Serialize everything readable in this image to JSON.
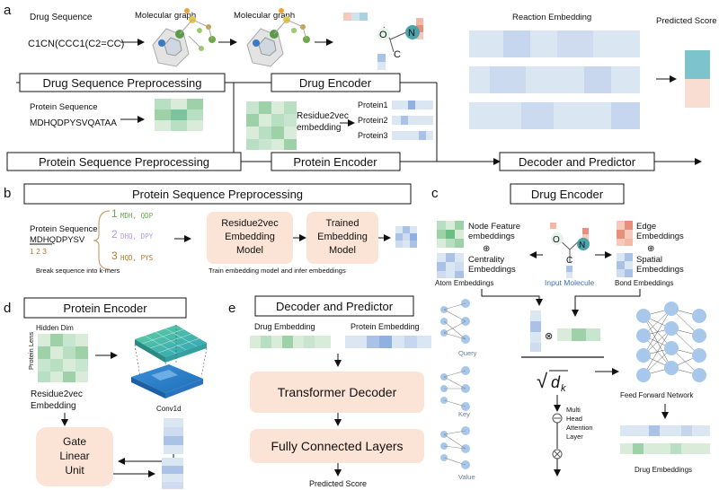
{
  "panels": {
    "a": "a",
    "b": "b",
    "c": "c",
    "d": "d",
    "e": "e"
  },
  "a": {
    "drug_sequence_label": "Drug Sequence",
    "drug_smiles": "C1CN(CCC1(C2=CC)",
    "molecular_graph_1": "Molecular graph",
    "molecular_graph_2": "Molecular graph",
    "atom_o": "O",
    "atom_n": "N",
    "atom_c": "C",
    "reaction_embedding": "Reaction Embedding",
    "predicted_score": "Predicted Score",
    "drug_seq_pre": "Drug Sequence Preprocessing",
    "drug_encoder": "Drug Encoder",
    "protein_sequence_label": "Protein Sequence",
    "protein_seq": "MDHQDPYSVQATAA",
    "residue2vec": "Residue2vec",
    "embedding": "embedding",
    "protein1": "Protein1",
    "protein2": "Protein2",
    "protein3": "Protein3",
    "protein_seq_pre": "Protein Sequence Preprocessing",
    "protein_encoder": "Protein Encoder",
    "decoder_predictor": "Decoder and Predictor"
  },
  "b": {
    "title": "Protein Sequence Preprocessing",
    "protein_sequence": "Protein Sequence",
    "seq": "MDHQDPYSV",
    "idx": "1 2 3",
    "kmer1_num": "1",
    "kmer1": "MDH,  QDP",
    "kmer2_num": "2",
    "kmer2": "DHQ,  DPY",
    "kmer3_num": "3",
    "kmer3": "HQD,  PYS",
    "box1_l1": "Residue2vec",
    "box1_l2": "Embedding",
    "box1_l3": "Model",
    "box2_l1": "Trained",
    "box2_l2": "Embedding",
    "box2_l3": "Model",
    "caption1": "Break sequence into k-mers",
    "caption2": "Train embedding model and infer embeddings"
  },
  "c": {
    "title": "Drug Encoder",
    "node_feature_l1": "Node Feature",
    "node_feature_l2": "embeddings",
    "plus1": "⊕",
    "centrality_l1": "Centrality",
    "centrality_l2": "Embeddings",
    "atom_embeddings": "Atom Embeddings",
    "input_molecule": "Input Molecule",
    "edge_l1": "Edge",
    "edge_l2": "Embeddings",
    "plus2": "⊕",
    "spatial_l1": "Spatial",
    "spatial_l2": "Embeddings",
    "bond_embeddings": "Bond Embeddings",
    "atom_o": "O",
    "atom_n": "N",
    "atom_c": "C",
    "query": "Query",
    "key": "Key",
    "value": "Value",
    "otimes": "⊗",
    "sqrt_dk": "√",
    "dk_d": "d",
    "dk_k": "k",
    "mha_l1": "Multi",
    "mha_l2": "Head",
    "mha_l3": "Attention",
    "mha_l4": "Layer",
    "ffn": "Feed Forward Network",
    "drug_embeddings": "Drug Embeddings"
  },
  "d": {
    "title": "Protein Encoder",
    "hidden_dim": "Hidden Dim",
    "protein_lens": "Protein Lens",
    "residue2vec": "Residue2vec",
    "embedding": "Embedding",
    "conv1d": "Conv1d",
    "glu_l1": "Gate",
    "glu_l2": "Linear",
    "glu_l3": "Unit"
  },
  "e": {
    "title": "Decoder and Predictor",
    "drug_embedding": "Drug Embedding",
    "protein_embedding": "Protein Embedding",
    "transformer_decoder": "Transformer Decoder",
    "fc_layers": "Fully Connected Layers",
    "predicted_score": "Predicted Score"
  },
  "colors": {
    "box_fill": "#fbe3d6",
    "green_light": "#d8ecd9",
    "green_mid": "#9fd1a9",
    "blue_light": "#dbe6f3",
    "blue_mid": "#a9c2e6",
    "teal": "#7cc3cc",
    "peach": "#f9ddd2",
    "cube_teal": "#3fb7a8",
    "cube_blue": "#2f83c9",
    "node_blue": "#a7c8ea"
  }
}
